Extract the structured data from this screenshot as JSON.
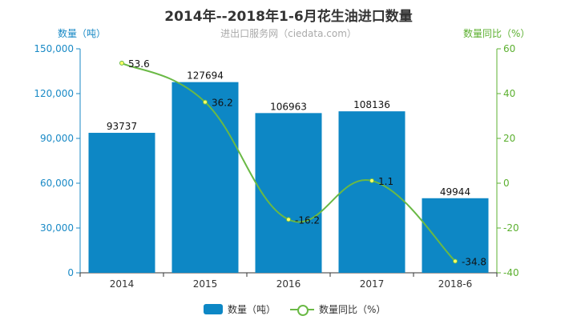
{
  "title": "2014年--2018年1-6月花生油进口数量",
  "subtitle": "进出口服务网（ciedata.com）",
  "legend": {
    "bar": "数量（吨）",
    "line": "数量同比（%）"
  },
  "colors": {
    "bar": "#0d87c5",
    "line": "#6ab945",
    "left_axis": "#1a8ac6",
    "right_axis": "#5cb030"
  },
  "chart_data": {
    "type": "bar",
    "categories": [
      "2014",
      "2015",
      "2016",
      "2017",
      "2018-6"
    ],
    "series": [
      {
        "name": "数量（吨）",
        "type": "bar",
        "axis": "left",
        "values": [
          93737,
          127694,
          106963,
          108136,
          49944
        ]
      },
      {
        "name": "数量同比（%）",
        "type": "line",
        "axis": "right",
        "smooth": true,
        "values": [
          53.6,
          36.2,
          -16.2,
          1.1,
          -34.8
        ]
      }
    ],
    "ylabel": "数量（吨）",
    "y2label": "数量同比（%）",
    "ylim": [
      0,
      150000
    ],
    "y2lim": [
      -40,
      60
    ],
    "yticks": [
      "0",
      "30,000",
      "60,000",
      "90,000",
      "120,000",
      "150,000"
    ],
    "y2ticks": [
      "-40",
      "-20",
      "0",
      "20",
      "40",
      "60"
    ],
    "legend_position": "bottom-center",
    "grid": false
  }
}
